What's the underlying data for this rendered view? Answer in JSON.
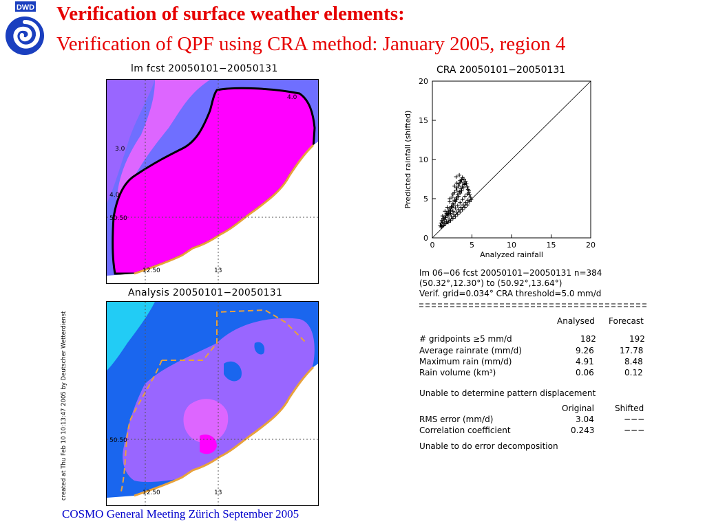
{
  "header": {
    "logo_text": "DWD",
    "title": "Verification of surface weather elements:",
    "subtitle": "Verification of QPF using CRA method: January 2005, region 4"
  },
  "map_forecast": {
    "title": "lm fcst 20050101−20050131",
    "contour_labels": [
      "4.0",
      "3.0",
      "4.0"
    ],
    "lat_label": "50.50",
    "lon_labels": [
      "12.50",
      "13"
    ]
  },
  "map_analysis": {
    "title": "Analysis 20050101−20050131",
    "lat_label": "50.50",
    "lon_labels": [
      "12.50",
      "13"
    ]
  },
  "credit": "created at Thu Feb 10 10:13:47 2005 by Deutscher Wetterdienst",
  "chart_data": {
    "type": "scatter",
    "title": "CRA  20050101−20050131",
    "xlabel": "Analyzed rainfall",
    "ylabel": "Predicted rainfall (shifted)",
    "xlim": [
      0,
      20
    ],
    "ylim": [
      0,
      20
    ],
    "xticks": [
      "0",
      "5",
      "10",
      "15",
      "20"
    ],
    "yticks": [
      "0",
      "5",
      "10",
      "15",
      "20"
    ],
    "reference_line": "y = x",
    "marker": "+",
    "series": [
      {
        "points": [
          [
            1.0,
            1.6
          ],
          [
            1.1,
            1.9
          ],
          [
            1.2,
            2.2
          ],
          [
            1.3,
            2.0
          ],
          [
            1.4,
            2.5
          ],
          [
            1.5,
            2.3
          ],
          [
            1.6,
            2.8
          ],
          [
            1.7,
            2.6
          ],
          [
            1.8,
            3.1
          ],
          [
            1.9,
            3.0
          ],
          [
            2.0,
            3.4
          ],
          [
            2.1,
            3.2
          ],
          [
            2.2,
            3.7
          ],
          [
            2.3,
            3.5
          ],
          [
            2.4,
            4.0
          ],
          [
            2.5,
            3.9
          ],
          [
            2.6,
            4.4
          ],
          [
            2.7,
            4.2
          ],
          [
            2.8,
            4.8
          ],
          [
            2.9,
            4.6
          ],
          [
            3.0,
            5.1
          ],
          [
            3.1,
            4.9
          ],
          [
            3.2,
            5.5
          ],
          [
            3.3,
            5.3
          ],
          [
            3.4,
            5.9
          ],
          [
            3.5,
            5.7
          ],
          [
            3.6,
            6.3
          ],
          [
            3.7,
            6.0
          ],
          [
            3.8,
            6.6
          ],
          [
            3.9,
            6.4
          ],
          [
            4.0,
            7.0
          ],
          [
            4.1,
            6.8
          ],
          [
            4.2,
            7.2
          ],
          [
            4.3,
            6.9
          ],
          [
            4.4,
            6.5
          ],
          [
            4.5,
            6.2
          ],
          [
            4.6,
            5.8
          ],
          [
            4.7,
            5.5
          ],
          [
            4.8,
            5.2
          ],
          [
            4.9,
            4.9
          ],
          [
            1.2,
            1.5
          ],
          [
            1.5,
            1.8
          ],
          [
            1.8,
            2.1
          ],
          [
            2.1,
            2.4
          ],
          [
            2.4,
            2.7
          ],
          [
            2.7,
            3.0
          ],
          [
            3.0,
            3.3
          ],
          [
            3.3,
            3.6
          ],
          [
            3.6,
            3.9
          ],
          [
            3.9,
            4.2
          ],
          [
            4.2,
            4.5
          ],
          [
            4.5,
            4.8
          ],
          [
            1.3,
            2.8
          ],
          [
            1.6,
            3.4
          ],
          [
            1.9,
            3.9
          ],
          [
            2.2,
            4.6
          ],
          [
            2.5,
            5.2
          ],
          [
            2.8,
            5.8
          ],
          [
            3.1,
            6.4
          ],
          [
            3.4,
            6.9
          ],
          [
            3.7,
            7.4
          ],
          [
            3.0,
            7.8
          ],
          [
            3.4,
            8.0
          ],
          [
            3.8,
            7.7
          ],
          [
            2.0,
            2.9
          ],
          [
            2.3,
            3.1
          ],
          [
            2.6,
            3.4
          ],
          [
            2.9,
            3.8
          ],
          [
            3.2,
            4.1
          ],
          [
            3.5,
            4.5
          ],
          [
            3.8,
            4.9
          ],
          [
            4.1,
            5.3
          ],
          [
            4.4,
            5.6
          ],
          [
            4.6,
            6.0
          ],
          [
            2.2,
            5.0
          ],
          [
            2.6,
            5.6
          ],
          [
            3.0,
            6.1
          ],
          [
            3.3,
            6.6
          ],
          [
            3.6,
            7.1
          ],
          [
            4.0,
            7.5
          ],
          [
            1.1,
            1.4
          ],
          [
            1.4,
            1.6
          ],
          [
            1.7,
            1.8
          ],
          [
            2.0,
            2.0
          ],
          [
            2.3,
            2.2
          ],
          [
            2.6,
            2.5
          ],
          [
            2.9,
            2.7
          ],
          [
            3.2,
            3.0
          ],
          [
            3.5,
            3.3
          ],
          [
            3.8,
            3.6
          ],
          [
            4.1,
            3.9
          ],
          [
            4.4,
            4.2
          ],
          [
            4.7,
            4.6
          ],
          [
            2.8,
            6.6
          ],
          [
            3.1,
            7.0
          ],
          [
            3.5,
            7.3
          ]
        ]
      }
    ]
  },
  "stats": {
    "header_lines": [
      "lm 06−06 fcst 20050101−20050131   n=384",
      "(50.32°,12.30°) to (50.92°,13.64°)",
      "Verif. grid=0.034°  CRA threshold=5.0 mm/d"
    ],
    "table1": {
      "columns": [
        "Analysed",
        "Forecast"
      ],
      "rows": [
        {
          "label": "# gridpoints ≥5 mm/d",
          "values": [
            "182",
            "192"
          ]
        },
        {
          "label": "Average rainrate (mm/d)",
          "values": [
            "9.26",
            "17.78"
          ]
        },
        {
          "label": "Maximum rain (mm/d)",
          "values": [
            "4.91",
            "8.48"
          ]
        },
        {
          "label": "Rain volume (km³)",
          "values": [
            "0.06",
            "0.12"
          ]
        }
      ]
    },
    "note1": "Unable to determine pattern displacement",
    "table2": {
      "columns": [
        "Original",
        "Shifted"
      ],
      "rows": [
        {
          "label": "RMS error (mm/d)",
          "values": [
            "3.04",
            "−−−"
          ]
        },
        {
          "label": "Correlation coefficient",
          "values": [
            "0.243",
            "−−−"
          ]
        }
      ]
    },
    "note2": "Unable to do error decomposition"
  },
  "footer": "COSMO General Meeting  Zürich September 2005",
  "colors": {
    "title_red": "#e60000",
    "footer_blue": "#0000cc",
    "magenta": "#ff00ff",
    "light_purple": "#dd66ff",
    "purple": "#9966ff",
    "blue_purple": "#6f6fff",
    "blue": "#1a66ee",
    "cyan": "#22ccf5",
    "orange": "#e8a23c"
  }
}
